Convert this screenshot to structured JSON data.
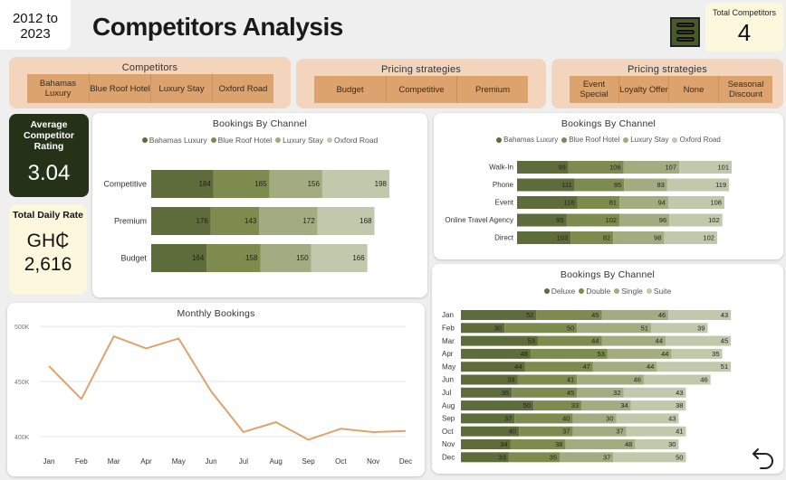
{
  "header": {
    "year_range": "2012 to 2023",
    "year_line1": "2012 to",
    "year_line2": "2023",
    "title": "Competitors Analysis",
    "total_competitors_label": "Total Competitors",
    "total_competitors_value": "4"
  },
  "slicers": {
    "competitors": {
      "title": "Competitors",
      "options": [
        "Bahamas Luxury",
        "Blue Roof Hotel",
        "Luxury Stay",
        "Oxford Road"
      ]
    },
    "pricing1": {
      "title": "Pricing strategies",
      "options": [
        "Budget",
        "Competitive",
        "Premium"
      ]
    },
    "pricing2": {
      "title": "Pricing strategies",
      "options": [
        "Event Special",
        "Loyalty Offer",
        "None",
        "Seasonal Discount"
      ]
    }
  },
  "kpis": {
    "avg_rating_label": "Average Competitor Rating",
    "avg_rating_value": "3.04",
    "daily_rate_label": "Total Daily Rate",
    "daily_rate_currency": "GH₵",
    "daily_rate_value": "2,616"
  },
  "colors": {
    "c1": "#5e6b3a",
    "c2": "#7d8b4e",
    "c3": "#a2ac80",
    "c4": "#c2c8ab",
    "line": "#dda36e",
    "dark": "#263218"
  },
  "chart_data": [
    {
      "type": "bar",
      "orientation": "horizontal-stacked",
      "title": "Bookings By Channel",
      "categories": [
        "Competitive",
        "Premium",
        "Budget"
      ],
      "series": [
        {
          "name": "Bahamas Luxury",
          "values": [
            184,
            176,
            164
          ]
        },
        {
          "name": "Blue Roof Hotel",
          "values": [
            165,
            143,
            158
          ]
        },
        {
          "name": "Luxury Stay",
          "values": [
            156,
            172,
            150
          ]
        },
        {
          "name": "Oxford Road",
          "values": [
            198,
            168,
            166
          ]
        }
      ]
    },
    {
      "type": "bar",
      "orientation": "horizontal-stacked",
      "title": "Bookings By Channel",
      "categories": [
        "Walk-In",
        "Phone",
        "Event",
        "Online Travel Agency",
        "Direct"
      ],
      "series": [
        {
          "name": "Bahamas Luxury",
          "values": [
            99,
            111,
            116,
            95,
            103
          ]
        },
        {
          "name": "Blue Roof Hotel",
          "values": [
            106,
            95,
            81,
            102,
            82
          ]
        },
        {
          "name": "Luxury Stay",
          "values": [
            107,
            83,
            94,
            96,
            98
          ]
        },
        {
          "name": "Oxford Road",
          "values": [
            101,
            119,
            108,
            102,
            102
          ]
        }
      ]
    },
    {
      "type": "line",
      "title": "Monthly Bookings",
      "x": [
        "Jan",
        "Feb",
        "Mar",
        "Apr",
        "May",
        "Jun",
        "Jul",
        "Aug",
        "Sep",
        "Oct",
        "Nov",
        "Dec"
      ],
      "y": [
        464000,
        434000,
        491000,
        480000,
        489000,
        441000,
        404000,
        413000,
        397000,
        407000,
        404000,
        405000
      ],
      "yticks": [
        "400K",
        "450K",
        "500K"
      ],
      "ylim": [
        390000,
        505000
      ]
    },
    {
      "type": "bar",
      "orientation": "horizontal-stacked",
      "title": "Bookings By Channel",
      "categories": [
        "Jan",
        "Feb",
        "Mar",
        "Apr",
        "May",
        "Jun",
        "Jul",
        "Aug",
        "Sep",
        "Oct",
        "Nov",
        "Dec"
      ],
      "series": [
        {
          "name": "Deluxe",
          "values": [
            52,
            30,
            53,
            48,
            44,
            39,
            35,
            50,
            37,
            40,
            34,
            33
          ]
        },
        {
          "name": "Double",
          "values": [
            45,
            50,
            44,
            53,
            47,
            41,
            45,
            33,
            40,
            37,
            38,
            35
          ]
        },
        {
          "name": "Single",
          "values": [
            46,
            51,
            44,
            44,
            44,
            46,
            32,
            34,
            30,
            37,
            48,
            37
          ]
        },
        {
          "name": "Suite",
          "values": [
            43,
            39,
            45,
            35,
            51,
            46,
            43,
            38,
            43,
            41,
            30,
            50
          ]
        }
      ]
    }
  ]
}
